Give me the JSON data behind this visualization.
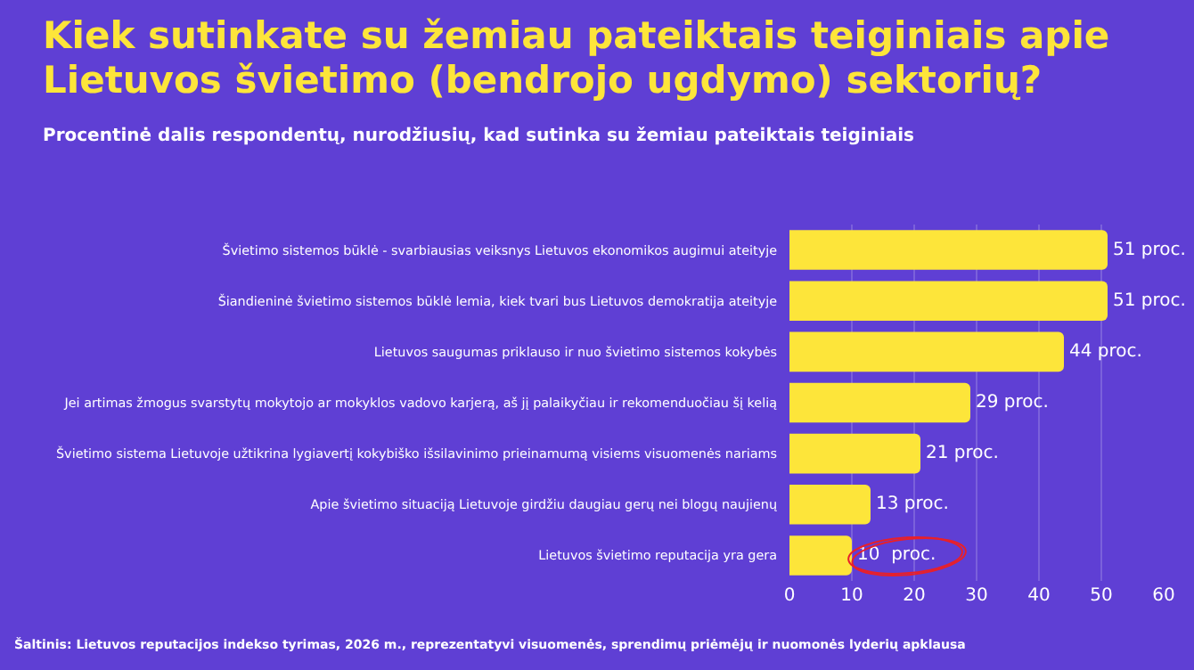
{
  "chart_data": {
    "type": "bar",
    "orientation": "horizontal",
    "title": "Kiek sutinkate su žemiau pateiktais teiginiais apie Lietuvos švietimo (bendrojo ugdymo) sektorių?",
    "subtitle": "Procentinė dalis respondentų, nurodžiusių, kad sutinka su žemiau pateiktais teiginiais",
    "categories": [
      "Švietimo sistemos būklė - svarbiausias veiksnys Lietuvos ekonomikos augimui ateityje",
      "Šiandieninė švietimo sistemos būklė lemia, kiek tvari bus Lietuvos demokratija ateityje",
      "Lietuvos saugumas priklauso ir nuo švietimo sistemos kokybės",
      "Jei artimas žmogus svarstytų mokytojo ar mokyklos vadovo karjerą, aš jį palaikyčiau ir rekomenduočiau šį kelią",
      "Švietimo sistema Lietuvoje užtikrina lygiavertį kokybiško išsilavinimo prieinamumą visiems visuomenės nariams",
      "Apie švietimo situaciją Lietuvoje girdžiu daugiau gerų nei blogų naujienų",
      "Lietuvos švietimo reputacija yra gera"
    ],
    "values": [
      51,
      51,
      44,
      29,
      21,
      13,
      10
    ],
    "value_labels": [
      "51 proc.",
      "51 proc.",
      "44 proc.",
      "29 proc.",
      "21 proc.",
      "13 proc.",
      "10  proc."
    ],
    "color": "#fde53a",
    "xlim": [
      0,
      60
    ],
    "xticks": [
      0,
      10,
      20,
      30,
      40,
      50,
      60
    ],
    "grid": "x",
    "legend": false,
    "annotations": [
      "Šaltinis: Lietuvos reputacijos indekso tyrimas, 2026 m., reprezentatyvi visuomenės, sprendimų priėmėjų ir nuomonės lyderių apklausa"
    ]
  }
}
